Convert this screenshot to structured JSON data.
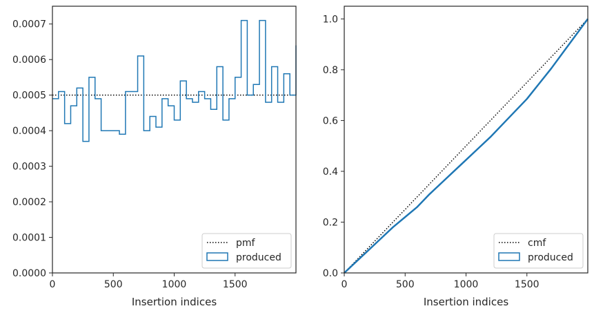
{
  "chart_data": [
    {
      "type": "step",
      "xlabel": "Insertion indices",
      "ylabel": "",
      "xlim": [
        0,
        2000
      ],
      "ylim": [
        0,
        0.00075
      ],
      "xticks": [
        0,
        500,
        1000,
        1500
      ],
      "xtick_labels": [
        "0",
        "500",
        "1000",
        "1500"
      ],
      "yticks": [
        0,
        0.0001,
        0.0002,
        0.0003,
        0.0004,
        0.0005,
        0.0006,
        0.0007
      ],
      "ytick_labels": [
        "0.0000",
        "0.0001",
        "0.0002",
        "0.0003",
        "0.0004",
        "0.0005",
        "0.0006",
        "0.0007"
      ],
      "legend_position": "lower-right",
      "reference": {
        "name": "pmf",
        "value": 0.0005,
        "style": "dotted",
        "color": "#000000"
      },
      "series": [
        {
          "name": "produced",
          "color": "#1f77b4",
          "bin_width": 50,
          "bin_start": 0,
          "values": [
            0.00049,
            0.00051,
            0.00042,
            0.00047,
            0.00052,
            0.00037,
            0.00055,
            0.00049,
            0.0004,
            0.0004,
            0.0004,
            0.00039,
            0.00051,
            0.00051,
            0.00061,
            0.0004,
            0.00044,
            0.00041,
            0.00049,
            0.00047,
            0.00043,
            0.00054,
            0.00049,
            0.00048,
            0.00051,
            0.00049,
            0.00046,
            0.00058,
            0.00043,
            0.00049,
            0.00055,
            0.00071,
            0.0005,
            0.00053,
            0.00071,
            0.00048,
            0.00058,
            0.00048,
            0.00056,
            0.0005,
            0.00064
          ]
        }
      ]
    },
    {
      "type": "line",
      "xlabel": "Insertion indices",
      "ylabel": "",
      "xlim": [
        0,
        2000
      ],
      "ylim": [
        0,
        1.05
      ],
      "xticks": [
        0,
        500,
        1000,
        1500
      ],
      "xtick_labels": [
        "0",
        "500",
        "1000",
        "1500"
      ],
      "yticks": [
        0,
        0.2,
        0.4,
        0.6,
        0.8,
        1.0
      ],
      "ytick_labels": [
        "0.0",
        "0.2",
        "0.4",
        "0.6",
        "0.8",
        "1.0"
      ],
      "legend_position": "lower-right",
      "reference": {
        "name": "cmf",
        "x": [
          0,
          2000
        ],
        "y": [
          0,
          1.0
        ],
        "style": "dotted",
        "color": "#000000"
      },
      "series": [
        {
          "name": "produced",
          "color": "#1f77b4",
          "x": [
            0,
            100,
            200,
            300,
            400,
            500,
            600,
            700,
            800,
            900,
            1000,
            1100,
            1200,
            1300,
            1400,
            1500,
            1600,
            1700,
            1800,
            1900,
            2000
          ],
          "y": [
            0.0,
            0.045,
            0.09,
            0.135,
            0.18,
            0.22,
            0.26,
            0.31,
            0.355,
            0.4,
            0.445,
            0.49,
            0.535,
            0.585,
            0.635,
            0.685,
            0.745,
            0.805,
            0.87,
            0.935,
            1.0
          ]
        }
      ]
    }
  ]
}
